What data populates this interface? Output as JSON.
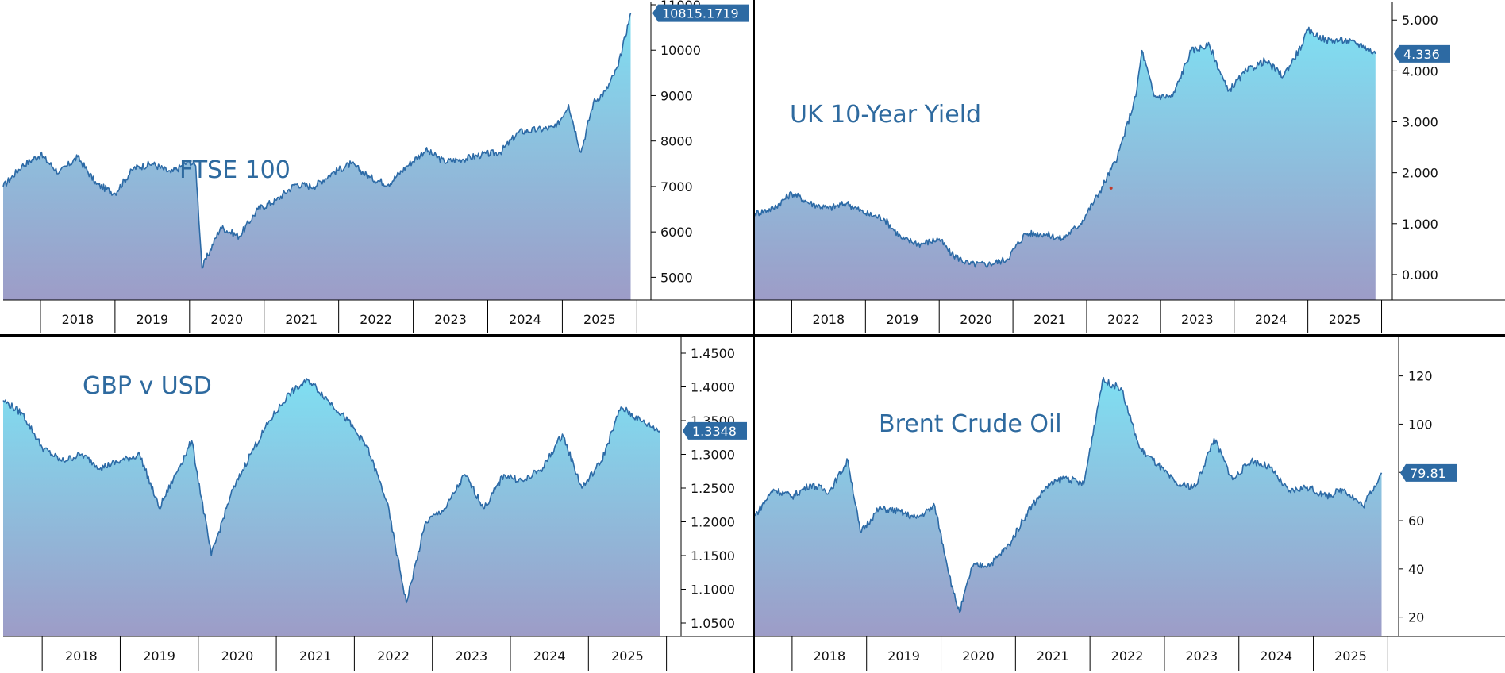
{
  "colors": {
    "line": "#2c6aa6",
    "fill_top": "#7fdff2",
    "fill_bottom": "#9d9cc7",
    "title": "#2e6a9f",
    "tag": "#2d6aa3",
    "frame": "#000000",
    "marker": "#c0392b"
  },
  "chart_data": [
    {
      "type": "area",
      "title": "FTSE 100",
      "last_value_label": "10815.1719",
      "x_tick_labels": [
        "2018",
        "2019",
        "2020",
        "2021",
        "2022",
        "2023",
        "2024",
        "2025"
      ],
      "y_tick_labels": [
        "5000",
        "6000",
        "7000",
        "8000",
        "9000",
        "10000",
        "11000"
      ],
      "x": [
        "2017-07",
        "2017-10",
        "2018-01",
        "2018-04",
        "2018-07",
        "2018-10",
        "2019-01",
        "2019-04",
        "2019-07",
        "2019-10",
        "2020-01",
        "2020-02",
        "2020-03",
        "2020-06",
        "2020-09",
        "2020-12",
        "2021-03",
        "2021-06",
        "2021-09",
        "2021-12",
        "2022-03",
        "2022-06",
        "2022-09",
        "2022-12",
        "2023-03",
        "2023-06",
        "2023-09",
        "2023-12",
        "2024-03",
        "2024-06",
        "2024-09",
        "2024-12",
        "2025-02",
        "2025-04",
        "2025-06",
        "2025-08",
        "2025-10",
        "2025-12"
      ],
      "values": [
        7000,
        7450,
        7700,
        7300,
        7650,
        7050,
        6850,
        7400,
        7500,
        7300,
        7550,
        7450,
        5200,
        6100,
        5900,
        6500,
        6700,
        7050,
        7000,
        7300,
        7500,
        7200,
        7050,
        7450,
        7800,
        7550,
        7600,
        7700,
        7750,
        8200,
        8250,
        8300,
        8800,
        7750,
        8850,
        9100,
        9650,
        10815.1719
      ],
      "ylim": [
        4500,
        11000
      ]
    },
    {
      "type": "area",
      "title": "UK 10-Year Yield",
      "last_value_label": "4.336",
      "x_tick_labels": [
        "2018",
        "2019",
        "2020",
        "2021",
        "2022",
        "2023",
        "2024",
        "2025"
      ],
      "y_tick_labels": [
        "0.000",
        "1.000",
        "2.000",
        "3.000",
        "4.000",
        "5.000"
      ],
      "x": [
        "2017-07",
        "2017-10",
        "2018-01",
        "2018-04",
        "2018-07",
        "2018-10",
        "2019-01",
        "2019-04",
        "2019-07",
        "2019-10",
        "2020-01",
        "2020-03",
        "2020-06",
        "2020-09",
        "2020-12",
        "2021-03",
        "2021-06",
        "2021-09",
        "2021-12",
        "2022-03",
        "2022-06",
        "2022-09",
        "2022-10",
        "2022-12",
        "2023-03",
        "2023-06",
        "2023-09",
        "2023-12",
        "2024-03",
        "2024-06",
        "2024-09",
        "2024-12",
        "2025-01",
        "2025-04",
        "2025-07",
        "2025-10",
        "2025-12"
      ],
      "values": [
        1.2,
        1.3,
        1.6,
        1.4,
        1.3,
        1.4,
        1.2,
        1.1,
        0.7,
        0.6,
        0.7,
        0.4,
        0.2,
        0.2,
        0.3,
        0.8,
        0.8,
        0.7,
        1.0,
        1.6,
        2.3,
        3.5,
        4.4,
        3.5,
        3.5,
        4.4,
        4.5,
        3.6,
        4.0,
        4.2,
        3.9,
        4.5,
        4.8,
        4.6,
        4.6,
        4.5,
        4.336
      ],
      "ylim": [
        -0.5,
        5.3
      ]
    },
    {
      "type": "area",
      "title": "GBP v USD",
      "last_value_label": "1.3348",
      "x_tick_labels": [
        "2018",
        "2019",
        "2020",
        "2021",
        "2022",
        "2023",
        "2024",
        "2025"
      ],
      "y_tick_labels": [
        "1.0500",
        "1.1000",
        "1.1500",
        "1.2000",
        "1.2500",
        "1.3000",
        "1.3500",
        "1.4000",
        "1.4500"
      ],
      "x": [
        "2017-07",
        "2017-10",
        "2018-01",
        "2018-04",
        "2018-07",
        "2018-10",
        "2019-01",
        "2019-04",
        "2019-07",
        "2019-10",
        "2019-12",
        "2020-03",
        "2020-06",
        "2020-09",
        "2020-12",
        "2021-03",
        "2021-06",
        "2021-09",
        "2021-12",
        "2022-03",
        "2022-06",
        "2022-09",
        "2022-12",
        "2023-03",
        "2023-06",
        "2023-09",
        "2023-12",
        "2024-03",
        "2024-06",
        "2024-09",
        "2024-12",
        "2025-03",
        "2025-06",
        "2025-09",
        "2025-12"
      ],
      "values": [
        1.38,
        1.36,
        1.31,
        1.29,
        1.3,
        1.28,
        1.29,
        1.3,
        1.22,
        1.28,
        1.32,
        1.15,
        1.24,
        1.3,
        1.35,
        1.39,
        1.41,
        1.38,
        1.35,
        1.31,
        1.23,
        1.08,
        1.2,
        1.22,
        1.27,
        1.22,
        1.27,
        1.26,
        1.28,
        1.33,
        1.25,
        1.29,
        1.37,
        1.35,
        1.3348
      ],
      "ylim": [
        1.03,
        1.47
      ]
    },
    {
      "type": "area",
      "title": "Brent Crude Oil",
      "last_value_label": "79.81",
      "x_tick_labels": [
        "2018",
        "2019",
        "2020",
        "2021",
        "2022",
        "2023",
        "2024",
        "2025"
      ],
      "y_tick_labels": [
        "20",
        "40",
        "60",
        "80",
        "100",
        "120"
      ],
      "x": [
        "2017-07",
        "2017-10",
        "2018-01",
        "2018-04",
        "2018-07",
        "2018-10",
        "2018-12",
        "2019-03",
        "2019-06",
        "2019-09",
        "2019-12",
        "2020-03",
        "2020-04",
        "2020-06",
        "2020-09",
        "2020-12",
        "2021-03",
        "2021-06",
        "2021-09",
        "2021-12",
        "2022-03",
        "2022-06",
        "2022-09",
        "2022-12",
        "2023-03",
        "2023-06",
        "2023-09",
        "2023-12",
        "2024-03",
        "2024-06",
        "2024-09",
        "2024-12",
        "2025-03",
        "2025-06",
        "2025-09",
        "2025-12"
      ],
      "values": [
        62,
        73,
        70,
        75,
        72,
        85,
        55,
        65,
        64,
        61,
        66,
        30,
        22,
        41,
        42,
        50,
        64,
        74,
        78,
        75,
        118,
        115,
        90,
        83,
        75,
        74,
        94,
        77,
        85,
        82,
        72,
        74,
        70,
        73,
        66,
        79.81
      ],
      "ylim": [
        12,
        135
      ]
    }
  ]
}
